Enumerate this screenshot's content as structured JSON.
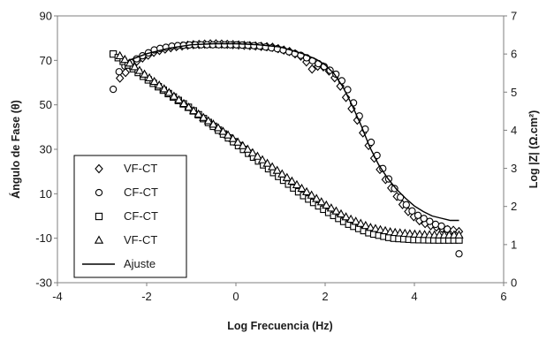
{
  "chart_data": {
    "type": "scatter",
    "xlabel": "Log Frecuencia (Hz)",
    "ylabel_left": "Ángulo de Fase (θ)",
    "ylabel_right": "Log |Z| (Ω.cm²)",
    "xlim": [
      -4,
      6
    ],
    "ylim_left": [
      -30,
      90
    ],
    "ylim_right": [
      0,
      7
    ],
    "x_ticks": [
      "-4",
      "-2",
      "0",
      "2",
      "4",
      "6"
    ],
    "y_left_ticks": [
      "-30",
      "-10",
      "10",
      "30",
      "50",
      "70",
      "90"
    ],
    "y_right_ticks": [
      "0",
      "1",
      "2",
      "3",
      "4",
      "5",
      "6",
      "7"
    ],
    "grid": false,
    "legend_position": "bottom-left",
    "series": [
      {
        "name": "VF-CT",
        "marker": "diamond",
        "axis": "left",
        "x_min": -2.6,
        "x_max": 5.0,
        "n": 61,
        "points": [
          [
            -2.6,
            62
          ],
          [
            -2.2,
            70
          ],
          [
            -1.8,
            74
          ],
          [
            -1.4,
            76
          ],
          [
            -1.0,
            77
          ],
          [
            -0.5,
            77.5
          ],
          [
            0,
            77
          ],
          [
            0.4,
            76.5
          ],
          [
            0.8,
            76
          ],
          [
            1.2,
            74
          ],
          [
            1.5,
            71.5
          ],
          [
            1.7,
            66
          ],
          [
            1.9,
            68
          ],
          [
            2.1,
            65
          ],
          [
            2.3,
            60
          ],
          [
            2.5,
            52
          ],
          [
            2.7,
            44
          ],
          [
            2.9,
            35
          ],
          [
            3.1,
            26
          ],
          [
            3.3,
            18
          ],
          [
            3.5,
            12
          ],
          [
            3.7,
            6
          ],
          [
            3.9,
            1
          ],
          [
            4.1,
            -2
          ],
          [
            4.3,
            -4
          ],
          [
            4.5,
            -5
          ],
          [
            4.7,
            -6
          ],
          [
            4.9,
            -6.5
          ],
          [
            5.0,
            -7
          ]
        ]
      },
      {
        "name": "CF-CT",
        "marker": "circle",
        "axis": "left",
        "x_min": -2.75,
        "x_max": 5.0,
        "n": 60,
        "points": [
          [
            -2.75,
            57
          ],
          [
            -2.6,
            66
          ],
          [
            -2.2,
            71
          ],
          [
            -1.8,
            75
          ],
          [
            -1.4,
            76.5
          ],
          [
            -1.0,
            77
          ],
          [
            -0.5,
            77
          ],
          [
            0,
            77
          ],
          [
            0.5,
            76.5
          ],
          [
            1.0,
            75
          ],
          [
            1.5,
            72
          ],
          [
            1.8,
            69
          ],
          [
            2.0,
            67
          ],
          [
            2.3,
            63
          ],
          [
            2.5,
            57
          ],
          [
            2.7,
            48
          ],
          [
            2.9,
            39
          ],
          [
            3.1,
            30
          ],
          [
            3.3,
            21
          ],
          [
            3.5,
            14
          ],
          [
            3.7,
            8
          ],
          [
            3.9,
            3
          ],
          [
            4.1,
            0
          ],
          [
            4.3,
            -2
          ],
          [
            4.5,
            -4
          ],
          [
            4.7,
            -5
          ],
          [
            4.9,
            -10
          ],
          [
            5.0,
            -17
          ]
        ]
      },
      {
        "name": "CF-CT",
        "marker": "square",
        "axis": "right",
        "x_min": -2.75,
        "x_max": 5.0,
        "n": 70,
        "points": [
          [
            -2.75,
            6.0
          ],
          [
            -2.4,
            5.7
          ],
          [
            -2.0,
            5.35
          ],
          [
            -1.5,
            4.95
          ],
          [
            -1.0,
            4.55
          ],
          [
            -0.5,
            4.1
          ],
          [
            0,
            3.65
          ],
          [
            0.5,
            3.2
          ],
          [
            1.0,
            2.75
          ],
          [
            1.5,
            2.3
          ],
          [
            2.0,
            1.9
          ],
          [
            2.5,
            1.55
          ],
          [
            3.0,
            1.3
          ],
          [
            3.5,
            1.17
          ],
          [
            4.0,
            1.13
          ],
          [
            4.5,
            1.12
          ],
          [
            5.0,
            1.12
          ]
        ]
      },
      {
        "name": "VF-CT",
        "marker": "triangle",
        "axis": "right",
        "x_min": -2.6,
        "x_max": 5.0,
        "n": 70,
        "points": [
          [
            -2.6,
            5.95
          ],
          [
            -2.2,
            5.6
          ],
          [
            -1.8,
            5.25
          ],
          [
            -1.4,
            4.9
          ],
          [
            -1.0,
            4.55
          ],
          [
            -0.5,
            4.15
          ],
          [
            0,
            3.72
          ],
          [
            0.5,
            3.3
          ],
          [
            1.0,
            2.88
          ],
          [
            1.5,
            2.45
          ],
          [
            2.0,
            2.05
          ],
          [
            2.5,
            1.7
          ],
          [
            3.0,
            1.45
          ],
          [
            3.5,
            1.32
          ],
          [
            4.0,
            1.27
          ],
          [
            4.5,
            1.25
          ],
          [
            5.0,
            1.25
          ]
        ]
      },
      {
        "name": "Ajuste",
        "marker": "line",
        "axis": "left",
        "points": [
          [
            -2.4,
            70
          ],
          [
            -2.0,
            73
          ],
          [
            -1.5,
            75.5
          ],
          [
            -1.0,
            77
          ],
          [
            -0.5,
            77.5
          ],
          [
            0,
            77.5
          ],
          [
            0.5,
            77
          ],
          [
            1.0,
            76
          ],
          [
            1.5,
            73
          ],
          [
            1.8,
            70.5
          ],
          [
            2.0,
            68
          ],
          [
            2.2,
            64
          ],
          [
            2.4,
            58
          ],
          [
            2.6,
            50
          ],
          [
            2.8,
            41
          ],
          [
            3.0,
            31
          ],
          [
            3.2,
            23
          ],
          [
            3.4,
            17
          ],
          [
            3.6,
            12
          ],
          [
            3.8,
            8
          ],
          [
            4.0,
            4.5
          ],
          [
            4.2,
            2
          ],
          [
            4.4,
            0
          ],
          [
            4.6,
            -1
          ],
          [
            4.8,
            -2
          ],
          [
            5.0,
            -2
          ]
        ]
      }
    ]
  }
}
